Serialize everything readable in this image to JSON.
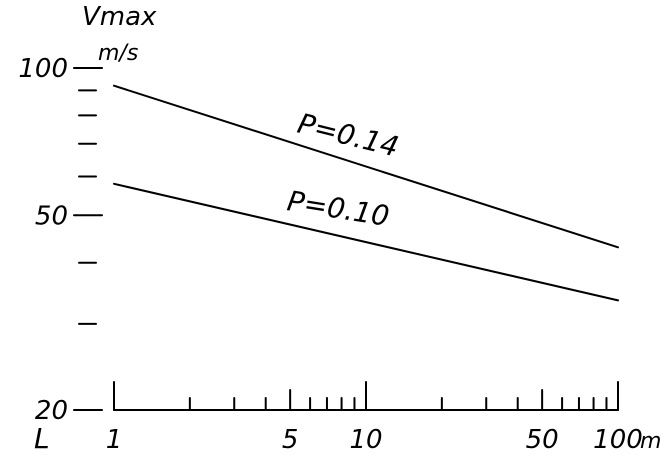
{
  "chart_data": {
    "type": "line",
    "x_scale": "log",
    "y_scale": "log",
    "ylabel": "Vmax",
    "yunit": "m/s",
    "xlabel": "L",
    "xunit": "m",
    "xlim": [
      1,
      100
    ],
    "ylim": [
      20,
      100
    ],
    "y_ticks": [
      {
        "value": 20,
        "label": "20"
      },
      {
        "value": 30,
        "label": ""
      },
      {
        "value": 40,
        "label": ""
      },
      {
        "value": 50,
        "label": "50"
      },
      {
        "value": 60,
        "label": ""
      },
      {
        "value": 70,
        "label": ""
      },
      {
        "value": 80,
        "label": ""
      },
      {
        "value": 90,
        "label": ""
      },
      {
        "value": 100,
        "label": "100"
      }
    ],
    "x_ticks": [
      {
        "value": 1,
        "label": "1"
      },
      {
        "value": 2,
        "label": ""
      },
      {
        "value": 3,
        "label": ""
      },
      {
        "value": 4,
        "label": ""
      },
      {
        "value": 5,
        "label": "5"
      },
      {
        "value": 6,
        "label": ""
      },
      {
        "value": 7,
        "label": ""
      },
      {
        "value": 8,
        "label": ""
      },
      {
        "value": 9,
        "label": ""
      },
      {
        "value": 10,
        "label": "10"
      },
      {
        "value": 20,
        "label": ""
      },
      {
        "value": 30,
        "label": ""
      },
      {
        "value": 40,
        "label": ""
      },
      {
        "value": 50,
        "label": "50"
      },
      {
        "value": 60,
        "label": ""
      },
      {
        "value": 70,
        "label": ""
      },
      {
        "value": 80,
        "label": ""
      },
      {
        "value": 90,
        "label": ""
      },
      {
        "value": 100,
        "label": "100"
      }
    ],
    "series": [
      {
        "name": "P=0.14",
        "x": [
          1,
          100
        ],
        "y": [
          92,
          43
        ]
      },
      {
        "name": "P=0.10",
        "x": [
          1,
          100
        ],
        "y": [
          58,
          33.5
        ]
      }
    ],
    "grid": false,
    "legend": "none"
  }
}
